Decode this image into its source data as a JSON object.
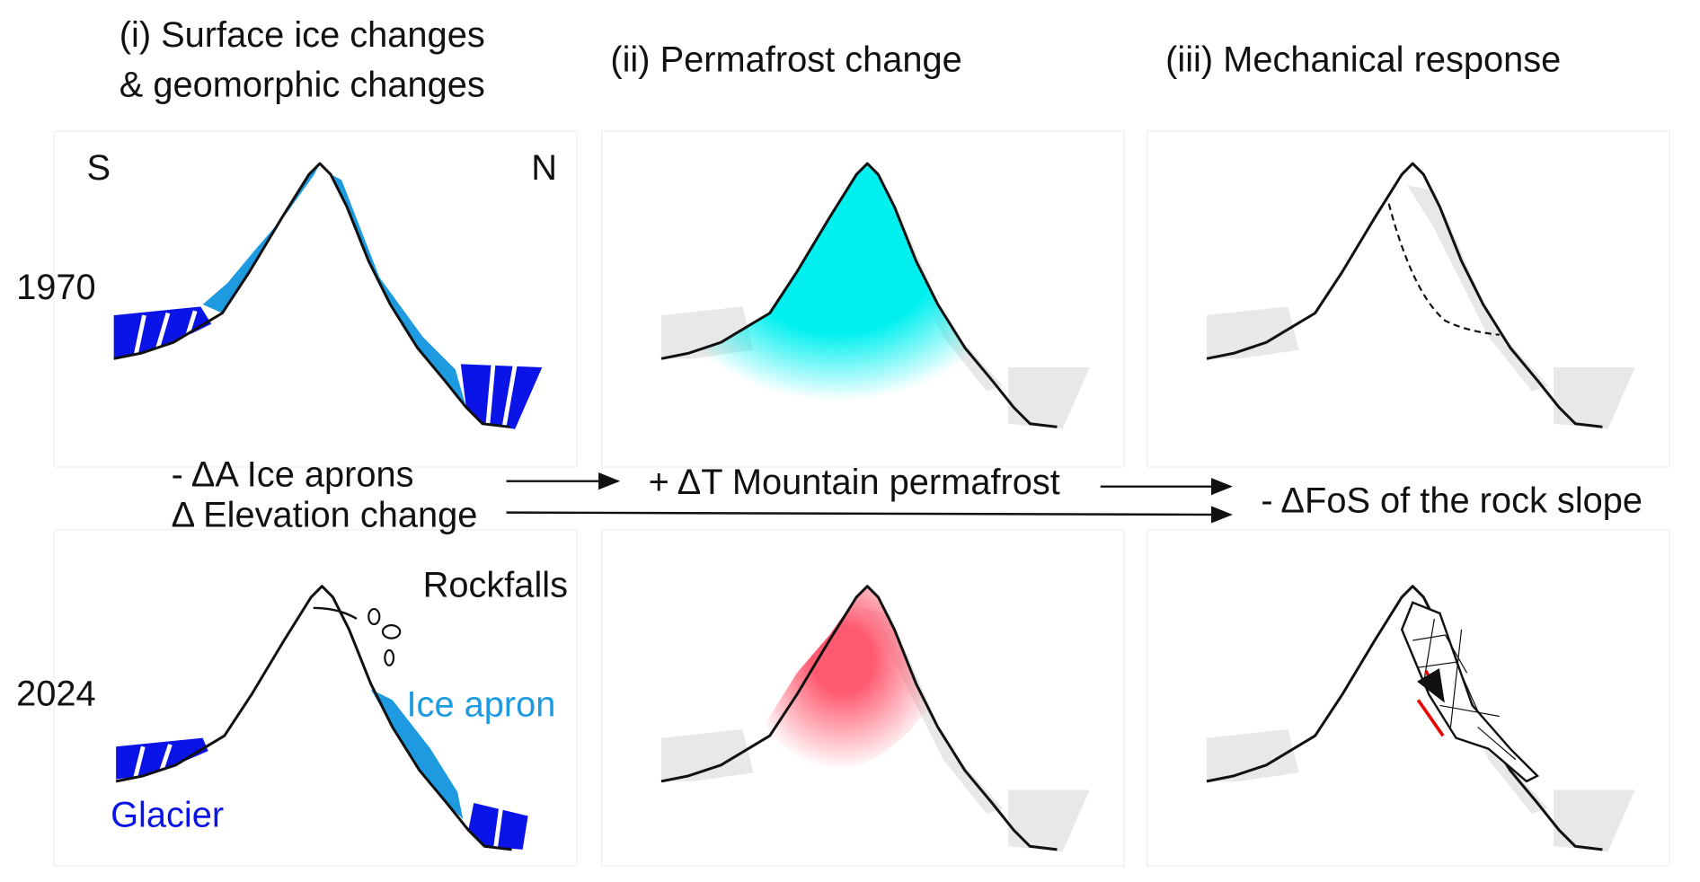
{
  "columns": [
    "(i) Surface ice changes",
    "& geomorphic changes",
    "(ii) Permafrost change",
    "(iii) Mechanical response"
  ],
  "rows": [
    "1970",
    "2024"
  ],
  "aspects": {
    "south": "S",
    "north": "N"
  },
  "drivers": {
    "ice": "- ΔA Ice aprons",
    "elevation": "Δ Elevation change",
    "permafrost": "+ ΔT Mountain permafrost",
    "response": "- ΔFoS of the rock slope"
  },
  "labels": {
    "rockfalls": "Rockfalls",
    "ice_apron": "Ice apron",
    "glacier": "Glacier"
  }
}
